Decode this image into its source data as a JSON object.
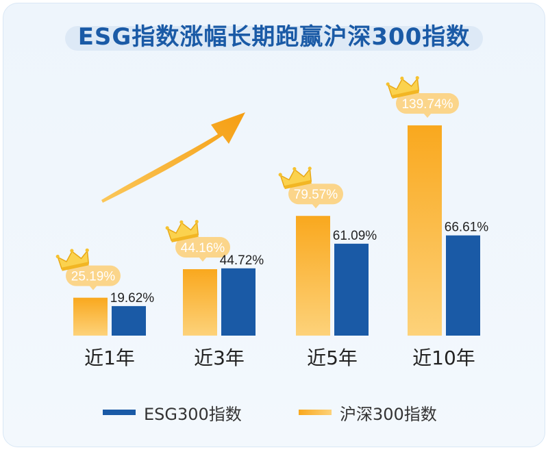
{
  "title": "ESG指数涨幅长期跑赢沪深300指数",
  "colors": {
    "esg": "#1a5aa6",
    "hs300_top": "#f9a81e",
    "hs300_bottom": "#fdd27a",
    "label_bg": "#fbd58a"
  },
  "chart_data": {
    "type": "bar",
    "categories": [
      "近1年",
      "近3年",
      "近5年",
      "近10年"
    ],
    "series": [
      {
        "name": "沪深300指数",
        "values": [
          25.19,
          44.16,
          79.57,
          139.74
        ],
        "labels": [
          "25.19%",
          "44.16%",
          "79.57%",
          "139.74%"
        ]
      },
      {
        "name": "ESG300指数",
        "values": [
          19.62,
          44.72,
          61.09,
          66.61
        ],
        "labels": [
          "19.62%",
          "44.72%",
          "61.09%",
          "66.61%"
        ]
      }
    ],
    "ylim": [
      0,
      160
    ],
    "grid": false,
    "legend_position": "bottom"
  },
  "legend": {
    "esg": "ESG300指数",
    "hs300": "沪深300指数"
  }
}
